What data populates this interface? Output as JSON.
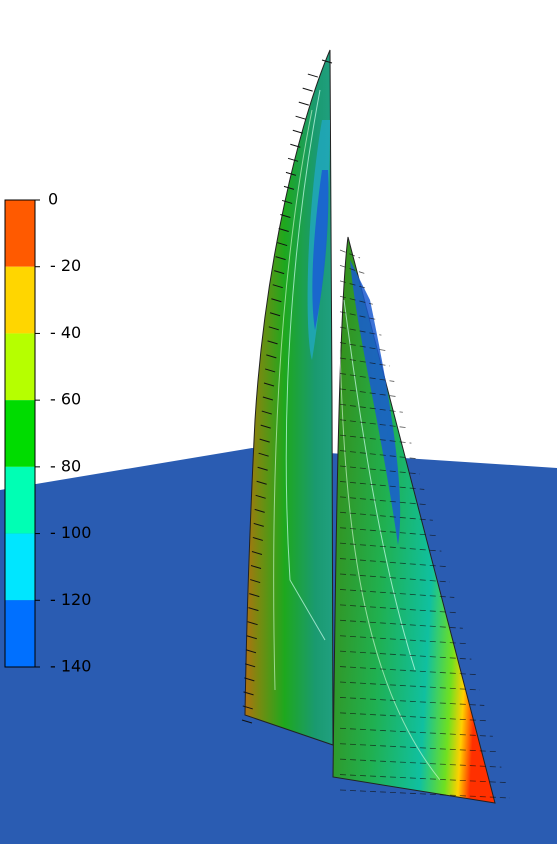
{
  "colorbar": {
    "ticks": [
      0,
      {
        "value": -20,
        "label": "- 20"
      },
      {
        "value": -40,
        "label": "- 40"
      },
      {
        "value": -60,
        "label": "- 60"
      },
      {
        "value": -80,
        "label": "- 80"
      },
      {
        "value": -100,
        "label": "- 100"
      },
      {
        "value": -120,
        "label": "- 120"
      },
      {
        "value": -140,
        "label": "- 140"
      }
    ],
    "lim": [
      0,
      -140
    ],
    "colors": [
      "#ff5a00",
      "#ffd600",
      "#b6ff00",
      "#00dc00",
      "#00ffb4",
      "#00e6ff",
      "#0070ff"
    ]
  }
}
